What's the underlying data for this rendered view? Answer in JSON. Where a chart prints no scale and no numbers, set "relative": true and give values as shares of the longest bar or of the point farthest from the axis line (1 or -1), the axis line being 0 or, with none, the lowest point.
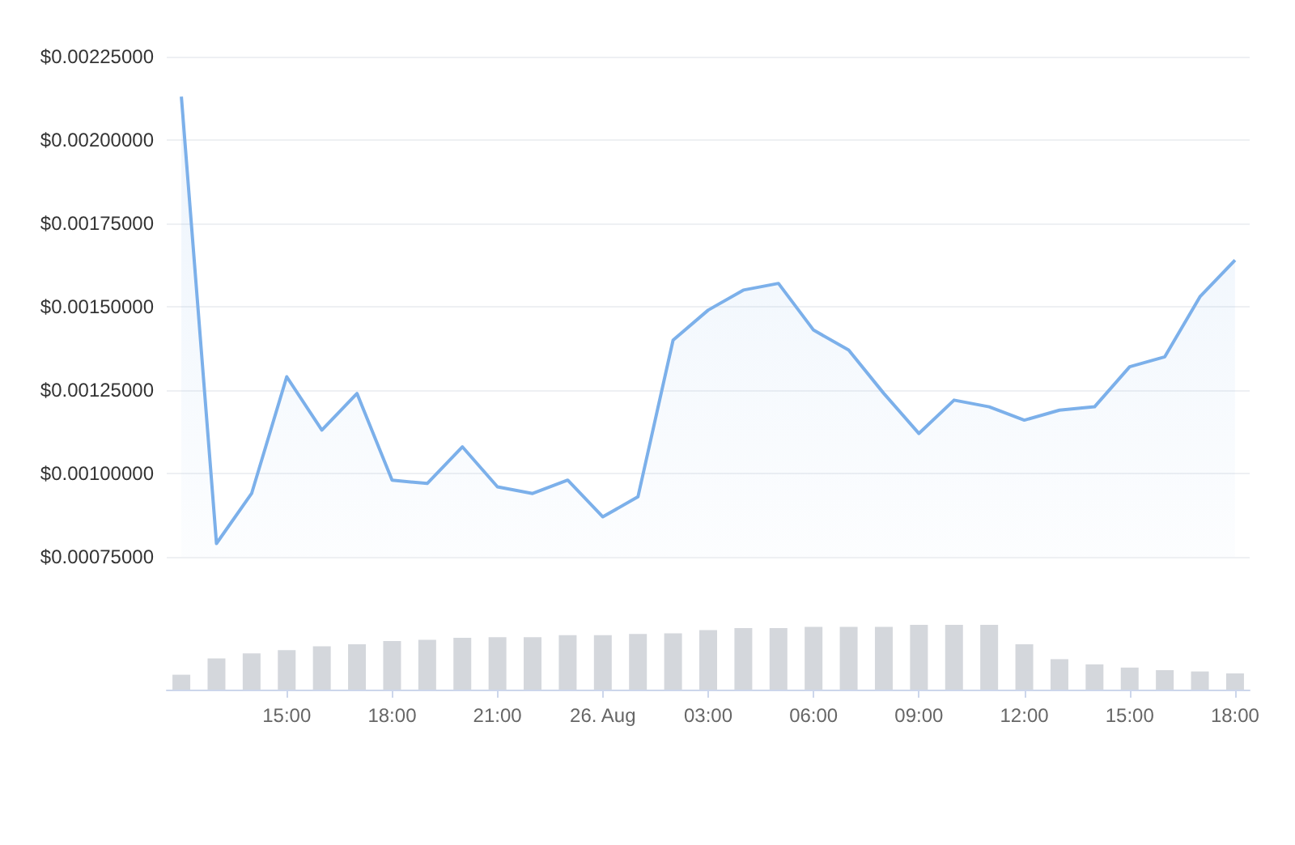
{
  "chart_data": [
    {
      "type": "area",
      "x": [
        "--08-25T12:00",
        "--08-25T13:00",
        "--08-25T14:00",
        "--08-25T15:00",
        "--08-25T16:00",
        "--08-25T17:00",
        "--08-25T18:00",
        "--08-25T19:00",
        "--08-25T20:00",
        "--08-25T21:00",
        "--08-25T22:00",
        "--08-25T23:00",
        "--08-26T00:00",
        "--08-26T01:00",
        "--08-26T02:00",
        "--08-26T03:00",
        "--08-26T04:00",
        "--08-26T05:00",
        "--08-26T06:00",
        "--08-26T07:00",
        "--08-26T08:00",
        "--08-26T09:00",
        "--08-26T10:00",
        "--08-26T11:00",
        "--08-26T12:00",
        "--08-26T13:00",
        "--08-26T14:00",
        "--08-26T15:00",
        "--08-26T16:00",
        "--08-26T17:00",
        "--08-26T18:00"
      ],
      "values": [
        0.00213,
        0.00079,
        0.00094,
        0.00129,
        0.00113,
        0.00124,
        0.00098,
        0.00097,
        0.00108,
        0.00096,
        0.00094,
        0.00098,
        0.00087,
        0.00093,
        0.0014,
        0.00149,
        0.00155,
        0.00157,
        0.00143,
        0.00137,
        0.00124,
        0.00112,
        0.00122,
        0.0012,
        0.00116,
        0.00119,
        0.0012,
        0.00132,
        0.00135,
        0.00153,
        0.00164
      ],
      "color": "#7cb0ea",
      "marker": "none",
      "xlim": [
        "--08-25T11:35",
        "--08-26T18:25"
      ],
      "ylim": [
        0.00075,
        0.00225
      ],
      "yticks": [
        {
          "value": 0.00075,
          "label": "$0.00075000"
        },
        {
          "value": 0.001,
          "label": "$0.00100000"
        },
        {
          "value": 0.00125,
          "label": "$0.00125000"
        },
        {
          "value": 0.0015,
          "label": "$0.00150000"
        },
        {
          "value": 0.00175,
          "label": "$0.00175000"
        },
        {
          "value": 0.002,
          "label": "$0.00200000"
        },
        {
          "value": 0.00225,
          "label": "$0.00225000"
        }
      ],
      "grid": "y",
      "tick_labels": "y"
    },
    {
      "type": "bar",
      "relative": true,
      "x": [
        "--08-25T12:00",
        "--08-25T13:00",
        "--08-25T14:00",
        "--08-25T15:00",
        "--08-25T16:00",
        "--08-25T17:00",
        "--08-25T18:00",
        "--08-25T19:00",
        "--08-25T20:00",
        "--08-25T21:00",
        "--08-25T22:00",
        "--08-25T23:00",
        "--08-26T00:00",
        "--08-26T01:00",
        "--08-26T02:00",
        "--08-26T03:00",
        "--08-26T04:00",
        "--08-26T05:00",
        "--08-26T06:00",
        "--08-26T07:00",
        "--08-26T08:00",
        "--08-26T09:00",
        "--08-26T10:00",
        "--08-26T11:00",
        "--08-26T12:00",
        "--08-26T13:00",
        "--08-26T14:00",
        "--08-26T15:00",
        "--08-26T16:00",
        "--08-26T17:00",
        "--08-26T18:00"
      ],
      "values": [
        0.23,
        0.48,
        0.56,
        0.61,
        0.67,
        0.7,
        0.75,
        0.77,
        0.8,
        0.81,
        0.81,
        0.84,
        0.84,
        0.86,
        0.87,
        0.92,
        0.95,
        0.95,
        0.97,
        0.97,
        0.97,
        1,
        1,
        1,
        0.7,
        0.47,
        0.39,
        0.34,
        0.3,
        0.28,
        0.25
      ],
      "color": "#d4d7dc",
      "xlim": [
        "--08-25T11:35",
        "--08-26T18:25"
      ],
      "xticks": [
        {
          "value": "--08-25T15:00",
          "label": "15:00"
        },
        {
          "value": "--08-25T18:00",
          "label": "18:00"
        },
        {
          "value": "--08-25T21:00",
          "label": "21:00"
        },
        {
          "value": "--08-26T00:00",
          "label": "26. Aug"
        },
        {
          "value": "--08-26T03:00",
          "label": "03:00"
        },
        {
          "value": "--08-26T06:00",
          "label": "06:00"
        },
        {
          "value": "--08-26T09:00",
          "label": "09:00"
        },
        {
          "value": "--08-26T12:00",
          "label": "12:00"
        },
        {
          "value": "--08-26T15:00",
          "label": "15:00"
        },
        {
          "value": "--08-26T18:00",
          "label": "18:00"
        }
      ]
    }
  ]
}
